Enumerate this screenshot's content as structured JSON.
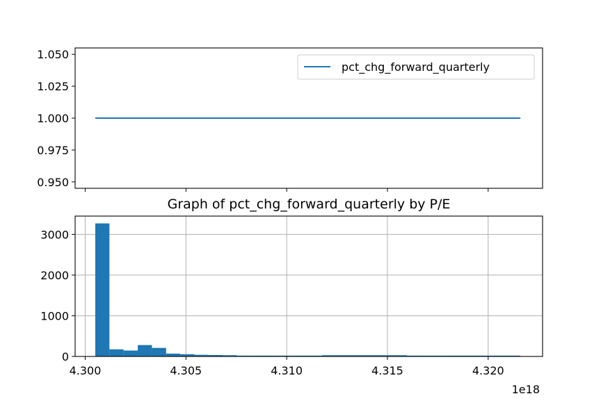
{
  "chart_data": [
    {
      "type": "line",
      "series": [
        {
          "name": "pct_chg_forward_quarterly",
          "x_range": [
            4.3005e+18,
            4.3216e+18
          ],
          "y": 1.0,
          "color": "#1f77b4"
        }
      ],
      "legend": {
        "placement": "top-right",
        "entries": [
          "pct_chg_forward_quarterly"
        ]
      },
      "ylim": [
        0.945,
        1.055
      ],
      "yticks": [
        0.95,
        0.975,
        1.0,
        1.025,
        1.05
      ],
      "ytick_labels": [
        "0.950",
        "0.975",
        "1.000",
        "1.025",
        "1.050"
      ],
      "xticks": [
        4.3,
        4.305,
        4.31,
        4.315,
        4.32
      ],
      "xtick_labels_shown": false,
      "xlim": [
        4.2995,
        4.3227
      ],
      "grid": false
    },
    {
      "type": "bar",
      "title": "Graph of pct_chg_forward_quarterly by P/E",
      "x_scale_label": "1e18",
      "xlim": [
        4.2995,
        4.3227
      ],
      "ylim": [
        0,
        3450
      ],
      "xticks": [
        4.3,
        4.305,
        4.31,
        4.315,
        4.32
      ],
      "xtick_labels": [
        "4.300",
        "4.305",
        "4.310",
        "4.315",
        "4.320"
      ],
      "yticks": [
        0,
        1000,
        2000,
        3000
      ],
      "ytick_labels": [
        "0",
        "1000",
        "2000",
        "3000"
      ],
      "grid": true,
      "color": "#1f77b4",
      "bins_start": 4.3005,
      "bin_width": 0.000703,
      "values": [
        3270,
        175,
        145,
        280,
        210,
        70,
        55,
        40,
        35,
        30,
        20,
        20,
        20,
        20,
        20,
        20,
        30,
        30,
        30,
        30,
        30,
        30,
        20,
        20,
        20,
        20,
        20,
        20,
        20,
        20
      ]
    }
  ]
}
